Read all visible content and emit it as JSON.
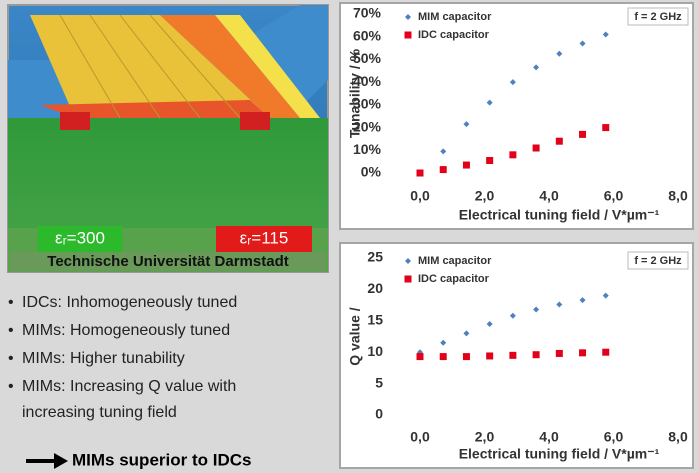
{
  "image": {
    "label_left": "εᵣ=300",
    "label_right": "εᵣ=115",
    "caption": "Technische Universität Darmstadt"
  },
  "bullets": [
    "IDCs: Inhomogeneously tuned",
    "MIMs: Homogeneously tuned",
    "MIMs: Higher tunability",
    "MIMs: Increasing Q value with",
    "increasing tuning field"
  ],
  "conclusion": "MIMs superior to IDCs",
  "chart_data": [
    {
      "type": "scatter",
      "annotation": "f = 2 GHz",
      "x_label": "Electrical tuning field / V*µm⁻¹",
      "y_label": "Tunability / %",
      "x": [
        0,
        0.72,
        1.44,
        2.16,
        2.88,
        3.6,
        4.32,
        5.04,
        5.76
      ],
      "series": [
        {
          "name": "MIM capacitor",
          "color": "#4f81bd",
          "marker": "diamond",
          "values": [
            null,
            9.5,
            21.5,
            31,
            40,
            46.5,
            52.5,
            57,
            61
          ]
        },
        {
          "name": "IDC capacitor",
          "color": "#e3001b",
          "marker": "square",
          "values": [
            0,
            1.5,
            3.5,
            5.5,
            8,
            11,
            14,
            17,
            20
          ]
        }
      ],
      "xlim": [
        0,
        8
      ],
      "xticks": [
        {
          "value": 0,
          "label": "0,0"
        },
        {
          "value": 2,
          "label": "2,0"
        },
        {
          "value": 4,
          "label": "4,0"
        },
        {
          "value": 6,
          "label": "6,0"
        },
        {
          "value": 8,
          "label": "8,0"
        }
      ],
      "ylim": [
        0,
        70
      ],
      "yticks": [
        {
          "value": 0,
          "label": "0%"
        },
        {
          "value": 10,
          "label": "10%"
        },
        {
          "value": 20,
          "label": "20%"
        },
        {
          "value": 30,
          "label": "30%"
        },
        {
          "value": 40,
          "label": "40%"
        },
        {
          "value": 50,
          "label": "50%"
        },
        {
          "value": 60,
          "label": "60%"
        },
        {
          "value": 70,
          "label": "70%"
        }
      ],
      "grid": false
    },
    {
      "type": "scatter",
      "annotation": "f = 2 GHz",
      "x_label": "Electrical tuning field / V*µm⁻¹",
      "y_label": "Q value /",
      "x": [
        0,
        0.72,
        1.44,
        2.16,
        2.88,
        3.6,
        4.32,
        5.04,
        5.76
      ],
      "series": [
        {
          "name": "MIM capacitor",
          "color": "#4f81bd",
          "marker": "diamond",
          "values": [
            10,
            11.5,
            13,
            14.5,
            15.8,
            16.8,
            17.6,
            18.3,
            19
          ]
        },
        {
          "name": "IDC capacitor",
          "color": "#e3001b",
          "marker": "square",
          "values": [
            9.3,
            9.3,
            9.3,
            9.4,
            9.5,
            9.6,
            9.8,
            9.9,
            10
          ]
        }
      ],
      "xlim": [
        0,
        8
      ],
      "xticks": [
        {
          "value": 0,
          "label": "0,0"
        },
        {
          "value": 2,
          "label": "2,0"
        },
        {
          "value": 4,
          "label": "4,0"
        },
        {
          "value": 6,
          "label": "6,0"
        },
        {
          "value": 8,
          "label": "8,0"
        }
      ],
      "ylim": [
        0,
        25
      ],
      "yticks": [
        0,
        5,
        10,
        15,
        20,
        25
      ],
      "grid": false
    }
  ]
}
